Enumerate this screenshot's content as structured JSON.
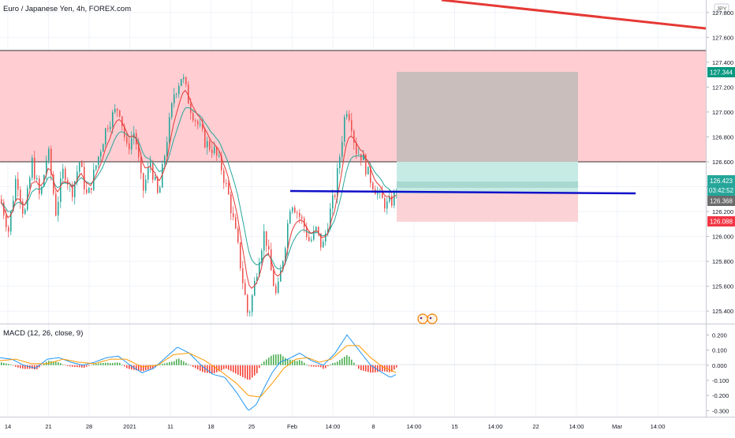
{
  "header": {
    "symbol_title": "Euro / Japanese Yen, 4h, FOREX.com"
  },
  "currency_button": "JPY",
  "macd": {
    "label": "MACD (12, 26, close, 9)"
  },
  "price_scale": {
    "ticks": [
      "127.800",
      "127.600",
      "127.400",
      "127.200",
      "127.000",
      "126.800",
      "126.600",
      "126.400",
      "126.200",
      "126.000",
      "125.800",
      "125.600",
      "125.400"
    ]
  },
  "macd_scale": {
    "ticks": [
      "0.200",
      "0.100",
      "0.000",
      "-0.100",
      "-0.200",
      "-0.300"
    ]
  },
  "price_tags": {
    "target": "127.344",
    "current": "126.423",
    "countdown": "03:42:52",
    "entry": "126.368",
    "stop": "126.088"
  },
  "time_axis": {
    "ticks": [
      "14",
      "21",
      "28",
      "2021",
      "11",
      "18",
      "25",
      "Feb",
      "14:00",
      "8",
      "14:00",
      "15",
      "14:00",
      "22",
      "14:00",
      "Mar",
      "14:00"
    ]
  },
  "colors": {
    "bull_candle": "#26a69a",
    "bear_candle": "#ef5350",
    "resistance_zone": "#ffcdd2",
    "trend_line": "#e53935",
    "support_line": "#1010c8",
    "target_tag": "#089981",
    "current_tag": "#26a69a",
    "entry_tag": "#6b6b6b",
    "stop_tag": "#f23645",
    "ema_fast": "#e53935",
    "ema_slow": "#26a69a",
    "macd_line": "#2196f3",
    "signal_line": "#ff9800"
  },
  "chart_data": {
    "type": "candlestick",
    "symbol": "EURJPY",
    "timeframe": "4h",
    "ylim": [
      125.3,
      127.9
    ],
    "resistance_zone": [
      126.6,
      127.52
    ],
    "levels": {
      "target": 127.344,
      "current": 126.423,
      "entry": 126.368,
      "stop": 126.088
    },
    "support_line_price": 126.33,
    "path": [
      [
        0,
        126.3
      ],
      [
        10,
        126.05
      ],
      [
        20,
        126.5
      ],
      [
        30,
        126.15
      ],
      [
        40,
        126.6
      ],
      [
        50,
        126.3
      ],
      [
        60,
        126.7
      ],
      [
        70,
        126.2
      ],
      [
        80,
        126.55
      ],
      [
        90,
        126.35
      ],
      [
        100,
        126.6
      ],
      [
        110,
        126.3
      ],
      [
        120,
        126.55
      ],
      [
        135,
        126.9
      ],
      [
        150,
        127.05
      ],
      [
        160,
        126.7
      ],
      [
        170,
        126.85
      ],
      [
        180,
        126.35
      ],
      [
        190,
        126.6
      ],
      [
        200,
        126.3
      ],
      [
        210,
        126.75
      ],
      [
        220,
        127.15
      ],
      [
        230,
        127.3
      ],
      [
        240,
        127.05
      ],
      [
        250,
        126.9
      ],
      [
        260,
        126.75
      ],
      [
        270,
        126.7
      ],
      [
        280,
        126.55
      ],
      [
        290,
        126.3
      ],
      [
        300,
        125.95
      ],
      [
        308,
        125.6
      ],
      [
        314,
        125.35
      ],
      [
        320,
        125.55
      ],
      [
        328,
        125.85
      ],
      [
        335,
        126.05
      ],
      [
        342,
        125.75
      ],
      [
        350,
        125.5
      ],
      [
        356,
        125.75
      ],
      [
        362,
        126.0
      ],
      [
        368,
        126.3
      ],
      [
        376,
        126.2
      ],
      [
        384,
        126.1
      ],
      [
        392,
        125.95
      ],
      [
        400,
        126.05
      ],
      [
        408,
        125.9
      ],
      [
        416,
        126.15
      ],
      [
        424,
        126.35
      ],
      [
        432,
        126.75
      ],
      [
        438,
        127.05
      ],
      [
        444,
        126.95
      ],
      [
        450,
        126.7
      ],
      [
        458,
        126.65
      ],
      [
        466,
        126.5
      ],
      [
        474,
        126.4
      ],
      [
        482,
        126.3
      ],
      [
        490,
        126.25
      ],
      [
        498,
        126.3
      ],
      [
        503,
        126.42
      ]
    ],
    "macd_path": [
      [
        0,
        0.05
      ],
      [
        15,
        0.04
      ],
      [
        30,
        0.0
      ],
      [
        45,
        -0.02
      ],
      [
        60,
        0.04
      ],
      [
        75,
        0.05
      ],
      [
        90,
        0.02
      ],
      [
        105,
        0.0
      ],
      [
        120,
        0.02
      ],
      [
        135,
        0.05
      ],
      [
        150,
        0.06
      ],
      [
        165,
        0.0
      ],
      [
        180,
        -0.05
      ],
      [
        195,
        -0.02
      ],
      [
        210,
        0.05
      ],
      [
        225,
        0.12
      ],
      [
        240,
        0.08
      ],
      [
        255,
        0.0
      ],
      [
        270,
        -0.06
      ],
      [
        285,
        -0.08
      ],
      [
        300,
        -0.18
      ],
      [
        315,
        -0.3
      ],
      [
        325,
        -0.26
      ],
      [
        335,
        -0.15
      ],
      [
        345,
        -0.05
      ],
      [
        355,
        0.02
      ],
      [
        365,
        0.04
      ],
      [
        380,
        0.08
      ],
      [
        395,
        0.03
      ],
      [
        410,
        0.0
      ],
      [
        425,
        0.08
      ],
      [
        440,
        0.2
      ],
      [
        455,
        0.1
      ],
      [
        470,
        0.0
      ],
      [
        485,
        -0.05
      ],
      [
        495,
        -0.08
      ],
      [
        503,
        -0.06
      ]
    ],
    "signal_path": [
      [
        0,
        0.03
      ],
      [
        20,
        0.04
      ],
      [
        40,
        0.01
      ],
      [
        60,
        0.01
      ],
      [
        80,
        0.04
      ],
      [
        100,
        0.02
      ],
      [
        120,
        0.01
      ],
      [
        140,
        0.04
      ],
      [
        160,
        0.04
      ],
      [
        180,
        -0.01
      ],
      [
        200,
        0.0
      ],
      [
        220,
        0.07
      ],
      [
        240,
        0.08
      ],
      [
        260,
        0.03
      ],
      [
        280,
        -0.04
      ],
      [
        300,
        -0.12
      ],
      [
        315,
        -0.2
      ],
      [
        330,
        -0.21
      ],
      [
        345,
        -0.12
      ],
      [
        360,
        -0.02
      ],
      [
        375,
        0.04
      ],
      [
        390,
        0.05
      ],
      [
        405,
        0.02
      ],
      [
        420,
        0.04
      ],
      [
        440,
        0.13
      ],
      [
        455,
        0.13
      ],
      [
        470,
        0.05
      ],
      [
        485,
        -0.01
      ],
      [
        503,
        -0.05
      ]
    ],
    "macd_ylim": [
      -0.34,
      0.27
    ]
  }
}
